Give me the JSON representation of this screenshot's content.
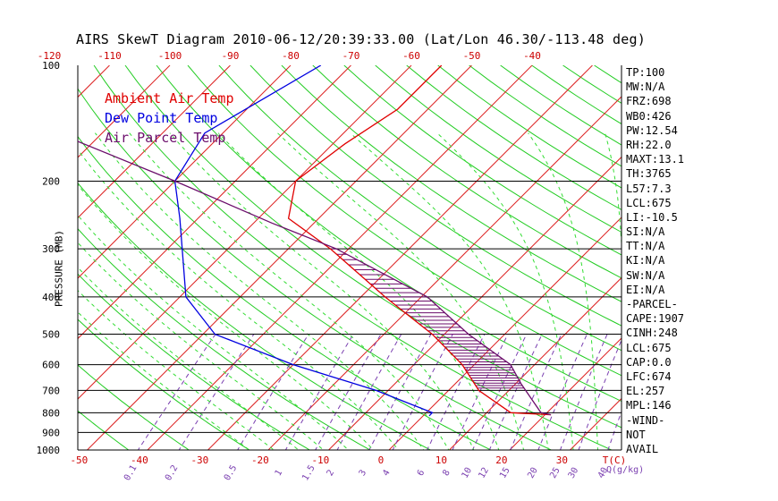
{
  "chart_data": {
    "type": "skewt",
    "title": "AIRS SkewT Diagram 2010-06-12/20:39:33.00 (Lat/Lon 46.30/-113.48 deg)",
    "ylabel": "PRESSURE (MB)",
    "pressure_ticks": [
      100,
      200,
      300,
      400,
      500,
      600,
      700,
      800,
      900,
      1000
    ],
    "top_temp_ticks": [
      -120,
      -110,
      -100,
      -90,
      -80,
      -70,
      -60,
      -50,
      -40
    ],
    "bottom_temp_ticks": [
      -50,
      -40,
      -30,
      -20,
      -10,
      0,
      10,
      20,
      30
    ],
    "bottom_axis_unit": "T(C)",
    "mixing_ratio_labels": [
      "0.1",
      "0.2",
      "0.5",
      "1",
      "1.5",
      "2",
      "3",
      "4",
      "6",
      "8",
      "10",
      "12",
      "15",
      "20",
      "25",
      "30",
      "40"
    ],
    "mixing_ratio_unit": "Q(g/kg)",
    "legend": [
      {
        "label": "Ambient Air Temp",
        "color": "#e00000"
      },
      {
        "label": "Dew Point Temp",
        "color": "#0000e0"
      },
      {
        "label": "Air Parcel Temp",
        "color": "#6b0d6b"
      }
    ],
    "series": [
      {
        "name": "Ambient Air Temp",
        "color": "#e00000",
        "points": [
          {
            "p": 100,
            "t": -55
          },
          {
            "p": 130,
            "t": -55
          },
          {
            "p": 160,
            "t": -58
          },
          {
            "p": 200,
            "t": -60
          },
          {
            "p": 250,
            "t": -55
          },
          {
            "p": 300,
            "t": -43
          },
          {
            "p": 400,
            "t": -26
          },
          {
            "p": 500,
            "t": -12
          },
          {
            "p": 600,
            "t": -2
          },
          {
            "p": 700,
            "t": 5
          },
          {
            "p": 800,
            "t": 14
          },
          {
            "p": 810,
            "t": 21
          }
        ]
      },
      {
        "name": "Dew Point Temp",
        "color": "#0000e0",
        "points": [
          {
            "p": 100,
            "t": -75
          },
          {
            "p": 150,
            "t": -83
          },
          {
            "p": 200,
            "t": -80
          },
          {
            "p": 250,
            "t": -73
          },
          {
            "p": 400,
            "t": -59
          },
          {
            "p": 500,
            "t": -48
          },
          {
            "p": 600,
            "t": -30
          },
          {
            "p": 700,
            "t": -12
          },
          {
            "p": 800,
            "t": 1
          },
          {
            "p": 815,
            "t": 1
          }
        ]
      },
      {
        "name": "Air Parcel Temp",
        "color": "#6b0d6b",
        "points": [
          {
            "p": 100,
            "t": -145
          },
          {
            "p": 146,
            "t": -110
          },
          {
            "p": 200,
            "t": -80
          },
          {
            "p": 257,
            "t": -57
          },
          {
            "p": 300,
            "t": -42
          },
          {
            "p": 400,
            "t": -19
          },
          {
            "p": 500,
            "t": -6
          },
          {
            "p": 600,
            "t": 6
          },
          {
            "p": 674,
            "t": 11
          },
          {
            "p": 800,
            "t": 19
          },
          {
            "p": 810,
            "t": 21
          }
        ]
      }
    ],
    "stats": [
      "TP:100",
      "MW:N/A",
      "FRZ:698",
      "WB0:426",
      "PW:12.54",
      "RH:22.0",
      "MAXT:13.1",
      "TH:3765",
      "L57:7.3",
      "LCL:675",
      "LI:-10.5",
      "SI:N/A",
      "TT:N/A",
      "KI:N/A",
      "SW:N/A",
      "EI:N/A",
      "-PARCEL-",
      "CAPE:1907",
      "CINH:248",
      "LCL:675",
      "CAP:0.0",
      "LFC:674",
      "EL:257",
      "MPL:146",
      "-WIND-",
      "NOT",
      "AVAIL"
    ]
  }
}
